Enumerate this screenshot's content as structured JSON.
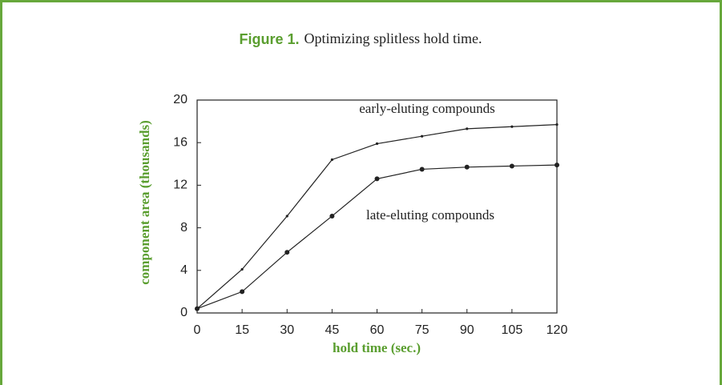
{
  "chart_data": {
    "type": "line",
    "figure_label": "Figure 1.",
    "title": "Optimizing splitless hold time.",
    "xlabel": "hold time (sec.)",
    "ylabel": "component area (thousands)",
    "x": [
      0,
      15,
      30,
      45,
      60,
      75,
      90,
      105,
      120
    ],
    "xlim": [
      0,
      120
    ],
    "xticks": [
      0,
      15,
      30,
      45,
      60,
      75,
      90,
      105,
      120
    ],
    "ylim": [
      0,
      20
    ],
    "yticks": [
      0,
      4,
      8,
      12,
      16,
      20
    ],
    "series": [
      {
        "name": "early-eluting compounds",
        "color": "#222222",
        "values": [
          0.4,
          4.1,
          9.1,
          14.4,
          15.9,
          16.6,
          17.3,
          17.5,
          17.7
        ]
      },
      {
        "name": "late-eluting compounds",
        "color": "#222222",
        "values": [
          0.4,
          2.0,
          5.7,
          9.1,
          12.6,
          13.5,
          13.7,
          13.8,
          13.9
        ]
      }
    ]
  }
}
